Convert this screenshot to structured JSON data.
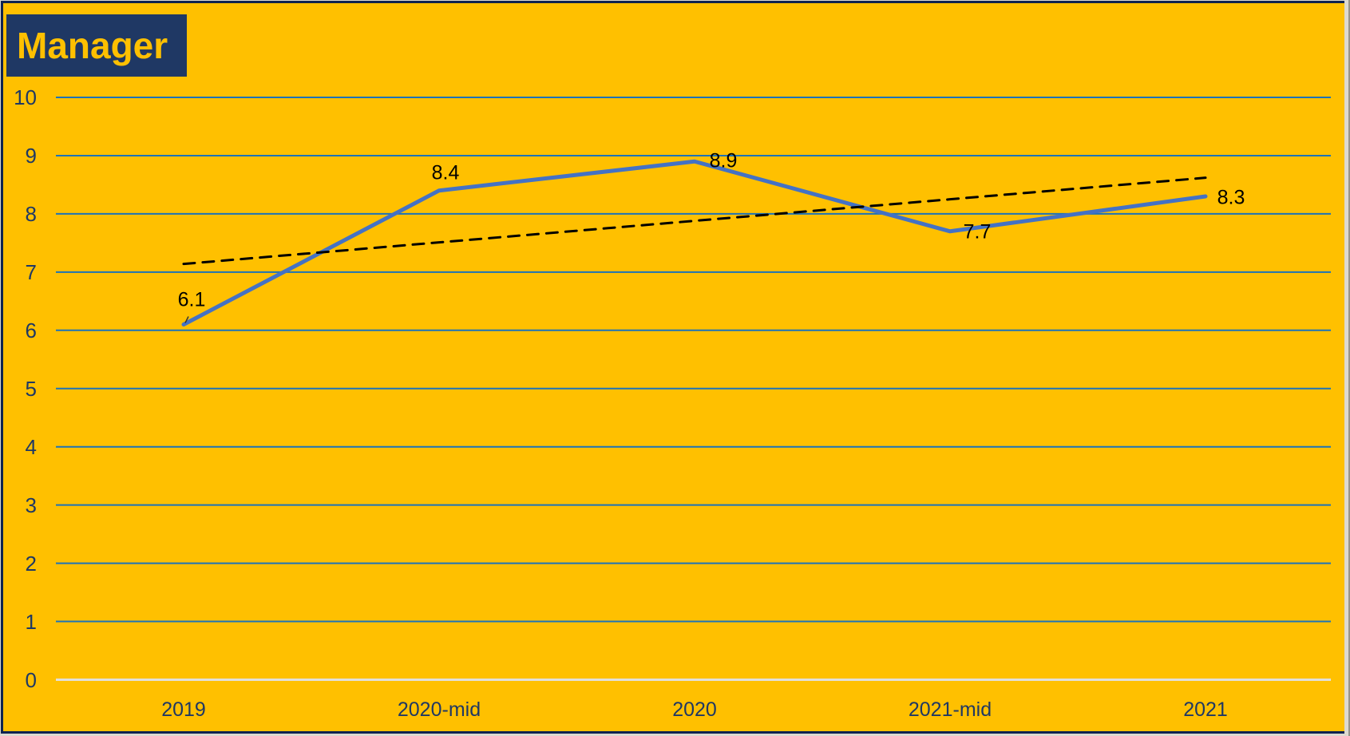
{
  "title": {
    "text": "Manager"
  },
  "colors": {
    "background": "#FFC000",
    "title_bg": "#1F3864",
    "title_text": "#FFC000",
    "frame": "#0F2350",
    "gridline": "#1D73B8",
    "axis_line": "#E2E0DA",
    "series_line": "#4472C4",
    "trendline": "#000000",
    "axis_label": "#1F3864",
    "data_label": "#000000"
  },
  "chart_data": {
    "type": "line",
    "title": "Manager",
    "categories": [
      "2019",
      "2020-mid",
      "2020",
      "2021-mid",
      "2021"
    ],
    "series": [
      {
        "name": "manager-score",
        "values": [
          6.1,
          8.4,
          8.9,
          7.7,
          8.3
        ],
        "color": "#4472C4",
        "style": "solid"
      },
      {
        "name": "linear-trendline",
        "values": [
          7.14,
          7.51,
          7.88,
          8.25,
          8.62
        ],
        "color": "#000000",
        "style": "dashed"
      }
    ],
    "data_labels": [
      "6.1",
      "8.4",
      "8.9",
      "7.7",
      "8.3"
    ],
    "xlabel": "",
    "ylabel": "",
    "ylim": [
      0,
      10
    ],
    "ytick_interval": 1,
    "yticks": [
      "0",
      "1",
      "2",
      "3",
      "4",
      "5",
      "6",
      "7",
      "8",
      "9",
      "10"
    ],
    "grid": "horizontal",
    "legend": "none"
  }
}
